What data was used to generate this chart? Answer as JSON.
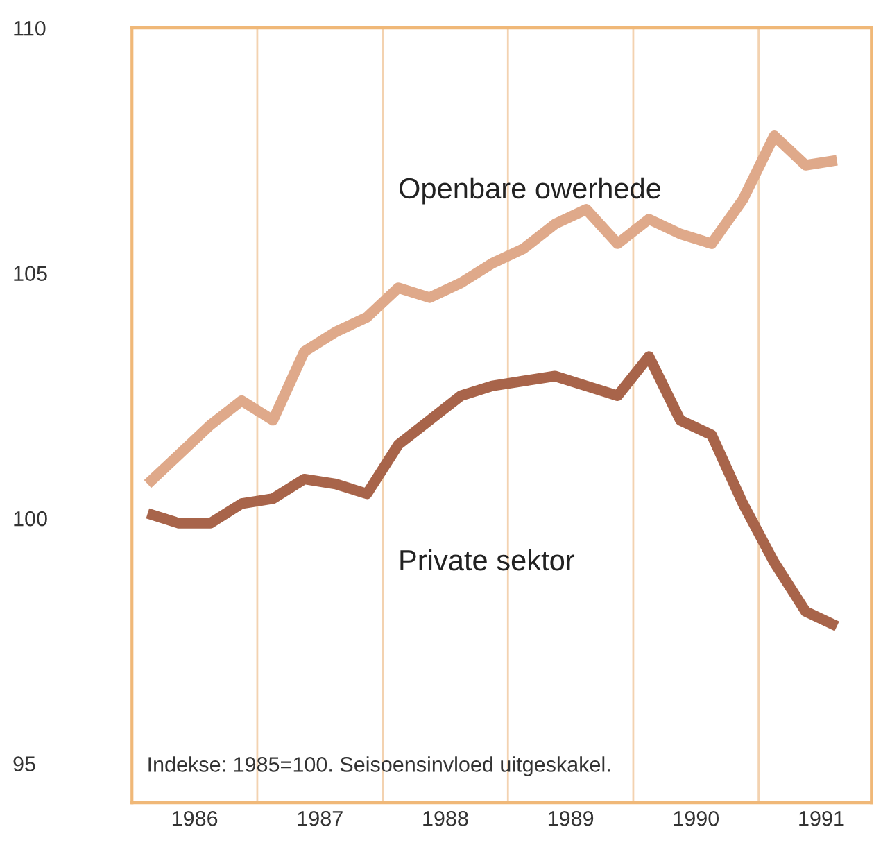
{
  "chart_data": {
    "type": "line",
    "x": [
      1986.125,
      1986.375,
      1986.625,
      1986.875,
      1987.125,
      1987.375,
      1987.625,
      1987.875,
      1988.125,
      1988.375,
      1988.625,
      1988.875,
      1989.125,
      1989.375,
      1989.625,
      1989.875,
      1990.125,
      1990.375,
      1990.625,
      1990.875,
      1991.125,
      1991.375,
      1991.625
    ],
    "series": [
      {
        "name": "Openbare owerhede",
        "color": "#dfa98a",
        "values": [
          100.7,
          101.3,
          101.9,
          102.4,
          102.0,
          103.4,
          103.8,
          104.1,
          104.7,
          104.5,
          104.8,
          105.2,
          105.5,
          106.0,
          106.3,
          105.6,
          106.1,
          105.8,
          105.6,
          106.5,
          107.8,
          107.2,
          107.3
        ]
      },
      {
        "name": "Private sektor",
        "color": "#a8644a",
        "values": [
          100.1,
          99.9,
          99.9,
          100.3,
          100.4,
          100.8,
          100.7,
          100.5,
          101.5,
          102.0,
          102.5,
          102.7,
          102.8,
          102.9,
          102.7,
          102.5,
          103.3,
          102.0,
          101.7,
          100.3,
          99.1,
          98.1,
          97.8
        ]
      }
    ],
    "xlim": [
      1986,
      1991.9
    ],
    "ylim": [
      94.2,
      110
    ],
    "xticks": [
      {
        "value": 1986.5,
        "label": "1986"
      },
      {
        "value": 1987.5,
        "label": "1987"
      },
      {
        "value": 1988.5,
        "label": "1988"
      },
      {
        "value": 1989.5,
        "label": "1989"
      },
      {
        "value": 1990.5,
        "label": "1990"
      },
      {
        "value": 1991.5,
        "label": "1991"
      }
    ],
    "yticks": [
      95,
      100,
      105,
      110
    ],
    "ref_lines": [
      {
        "axis": "x",
        "value": 1987,
        "color": "#f3d2b0"
      },
      {
        "axis": "x",
        "value": 1988,
        "color": "#f3d2b0"
      },
      {
        "axis": "x",
        "value": 1989,
        "color": "#f3d2b0"
      },
      {
        "axis": "x",
        "value": 1990,
        "color": "#f3d2b0"
      },
      {
        "axis": "x",
        "value": 1991,
        "color": "#f3d2b0"
      }
    ],
    "annotations": [
      "Indekse: 1985=100. Seisoensinvloed uitgeskakel."
    ],
    "grid": false,
    "legend": false,
    "line_style": "solid",
    "marker": "none"
  }
}
